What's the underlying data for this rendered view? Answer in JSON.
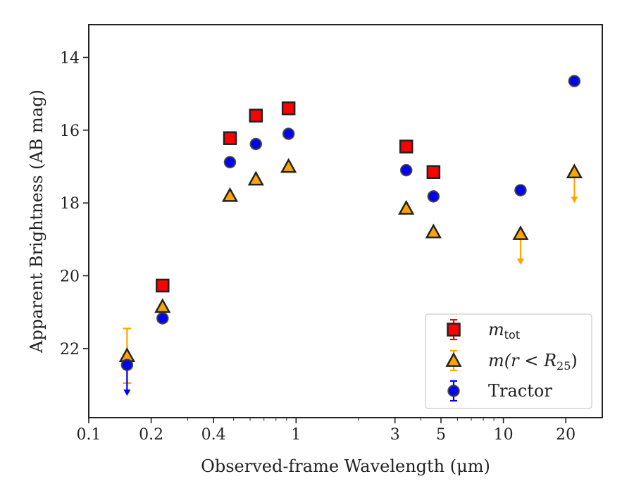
{
  "chart_data": {
    "type": "scatter",
    "xlabel": "Observed-frame Wavelength (μm)",
    "ylabel": "Apparent Brightness (AB mag)",
    "x_scale": "log",
    "xlim": [
      0.1,
      30
    ],
    "ylim": [
      23.9,
      13.1
    ],
    "y_inverted": true,
    "x_ticks": [
      {
        "value": 0.1,
        "label": "0.1"
      },
      {
        "value": 0.2,
        "label": "0.2"
      },
      {
        "value": 0.4,
        "label": "0.4"
      },
      {
        "value": 1,
        "label": "1"
      },
      {
        "value": 3,
        "label": "3"
      },
      {
        "value": 5,
        "label": "5"
      },
      {
        "value": 10,
        "label": "10"
      },
      {
        "value": 20,
        "label": "20"
      }
    ],
    "y_ticks": [
      {
        "value": 14,
        "label": "14"
      },
      {
        "value": 16,
        "label": "16"
      },
      {
        "value": 18,
        "label": "18"
      },
      {
        "value": 20,
        "label": "20"
      },
      {
        "value": 22,
        "label": "22"
      }
    ],
    "grid": false,
    "legend_position": "lower-right",
    "series": [
      {
        "name": "m_tot",
        "legend_base": "m",
        "legend_sub": "tot",
        "marker": "square",
        "color": "#ff0000",
        "edge_color": "#222222",
        "errorbar_color": "#ff0000",
        "points": [
          {
            "x": 0.227,
            "y": 20.27
          },
          {
            "x": 0.48,
            "y": 16.22
          },
          {
            "x": 0.64,
            "y": 15.6
          },
          {
            "x": 0.92,
            "y": 15.4
          },
          {
            "x": 3.4,
            "y": 16.45
          },
          {
            "x": 4.6,
            "y": 17.15
          }
        ]
      },
      {
        "name": "m(r < R_25)",
        "legend_prefix": "m(r < R",
        "legend_sub": "25",
        "legend_suffix": ")",
        "marker": "triangle",
        "color": "#ffa500",
        "edge_color": "#222222",
        "errorbar_color": "#ffa500",
        "points": [
          {
            "x": 0.153,
            "y": 22.2,
            "err": 0.75
          },
          {
            "x": 0.227,
            "y": 20.85
          },
          {
            "x": 0.48,
            "y": 17.8
          },
          {
            "x": 0.64,
            "y": 17.35
          },
          {
            "x": 0.92,
            "y": 17.0
          },
          {
            "x": 3.4,
            "y": 18.15
          },
          {
            "x": 4.6,
            "y": 18.8
          },
          {
            "x": 12.1,
            "y": 18.85,
            "upper_limit": true
          },
          {
            "x": 22.0,
            "y": 17.15,
            "upper_limit": true
          }
        ]
      },
      {
        "name": "Tractor",
        "marker": "circle",
        "color": "#0000ff",
        "edge_color": "#333333",
        "errorbar_color": "#0000ff",
        "points": [
          {
            "x": 0.153,
            "y": 22.45,
            "upper_limit": true
          },
          {
            "x": 0.227,
            "y": 21.17
          },
          {
            "x": 0.48,
            "y": 16.88
          },
          {
            "x": 0.64,
            "y": 16.38
          },
          {
            "x": 0.92,
            "y": 16.1
          },
          {
            "x": 3.4,
            "y": 17.1
          },
          {
            "x": 4.6,
            "y": 17.82
          },
          {
            "x": 12.1,
            "y": 17.65
          },
          {
            "x": 22.0,
            "y": 14.65
          }
        ]
      }
    ]
  }
}
